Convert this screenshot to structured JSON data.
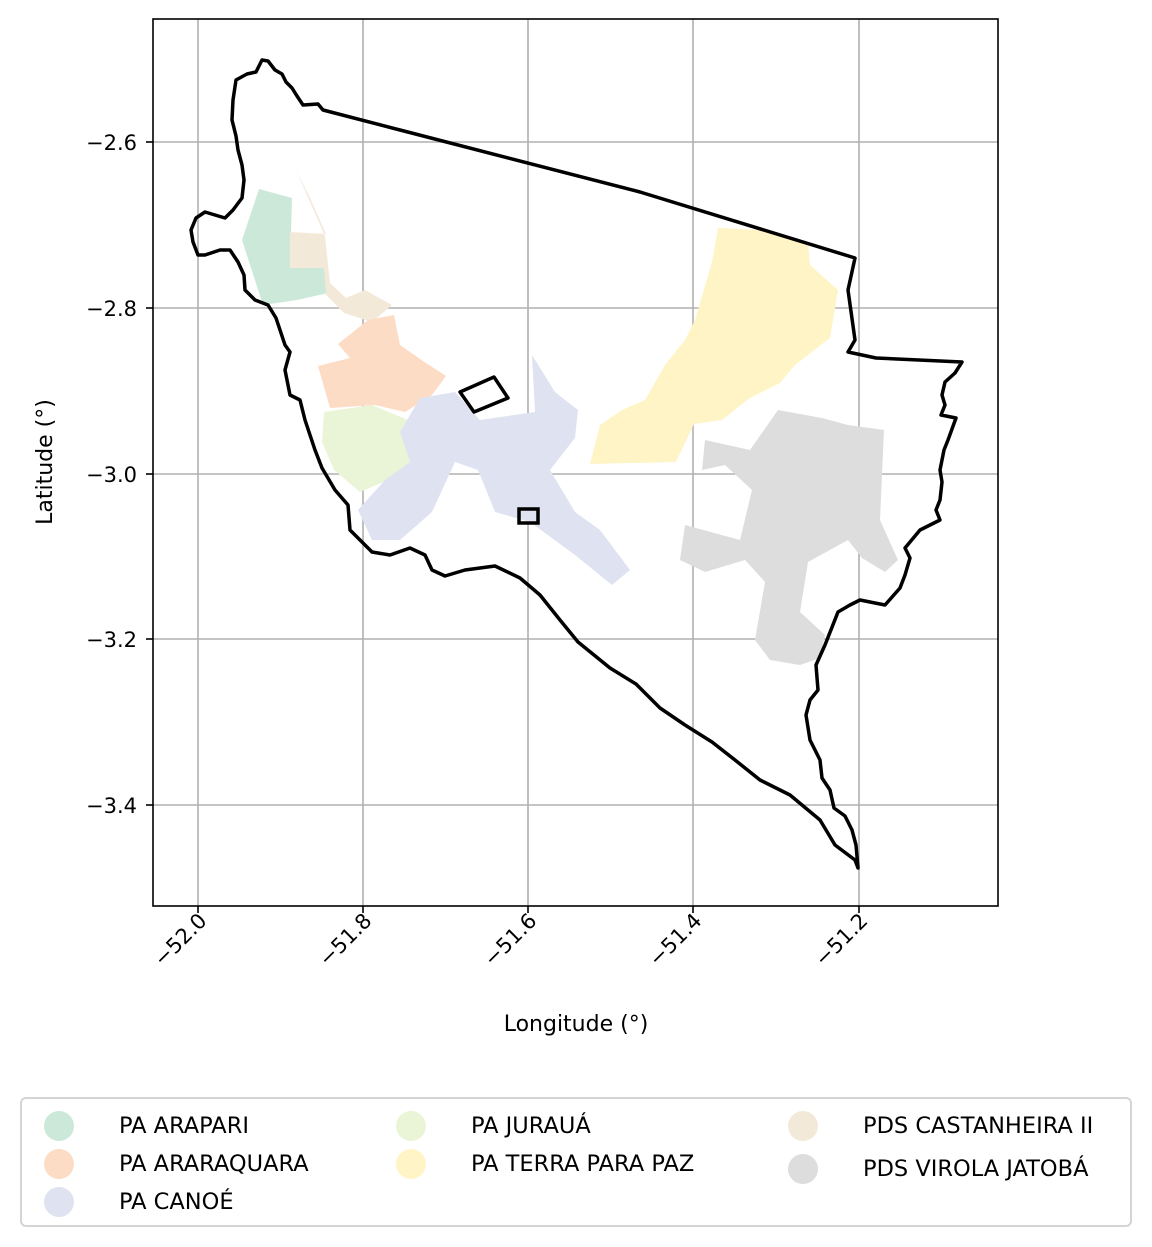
{
  "axes": {
    "xlabel": "Longitude (°)",
    "ylabel": "Latitude (°)",
    "xticks": [
      "−52.0",
      "−51.8",
      "−51.6",
      "−51.4",
      "−51.2"
    ],
    "yticks": [
      "−2.6",
      "−2.8",
      "−3.0",
      "−3.2",
      "−3.4"
    ],
    "xlim": [
      -52.055,
      -51.028
    ],
    "ylim": [
      -3.525,
      -2.45
    ],
    "grid": true
  },
  "legend": {
    "placement": "below",
    "items": [
      {
        "label": "PA ARAPARI",
        "color": "#cce8d9"
      },
      {
        "label": "PA ARARAQUARA",
        "color": "#fddcc5"
      },
      {
        "label": "PA CANOÉ",
        "color": "#dfe3f1"
      },
      {
        "label": "PA JURAUÁ",
        "color": "#eaf5d8"
      },
      {
        "label": "PA TERRA PARA PAZ",
        "color": "#fff4c6"
      },
      {
        "label": "PDS CASTANHEIRA II",
        "color": "#f3e9d9"
      },
      {
        "label": "PDS VIROLA JATOBÁ",
        "color": "#dddddd"
      }
    ]
  }
}
